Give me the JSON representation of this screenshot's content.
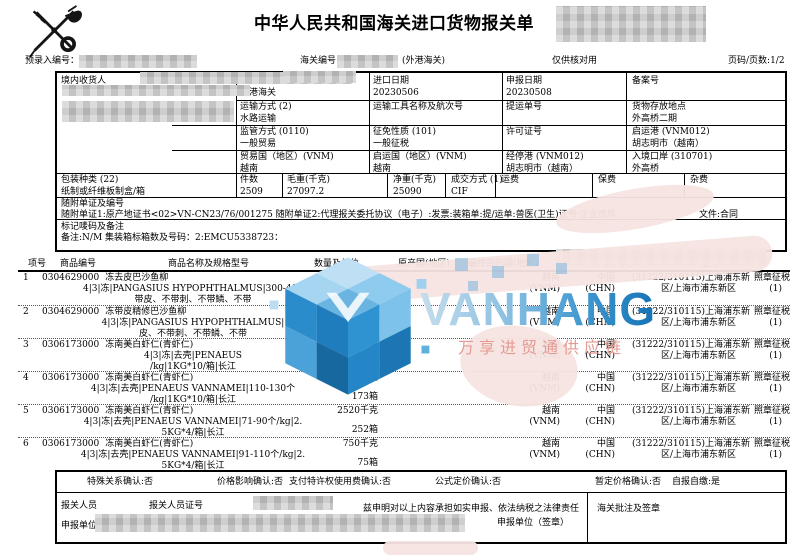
{
  "meta": {
    "title": "中华人民共和国海关进口货物报关单",
    "pre_entry_label": "预录入编号：",
    "customs_no_label": "海关编号：",
    "office": "(外港海关)",
    "check_note": "仅供核对用",
    "page_info": "页码/页数:1/2"
  },
  "head": {
    "consignee_label": "境内收货人",
    "entry_customs_label": "进境关别",
    "entry_customs": "外港海关",
    "import_date_label": "进口日期",
    "import_date": "20230506",
    "declare_date_label": "申报日期",
    "declare_date": "20230508",
    "record_no_label": "备案号",
    "transport_label": "运输方式 (2)",
    "transport": "水路运输",
    "vessel_label": "运输工具名称及航次号",
    "bill_label": "提运单号",
    "storage_label": "货物存放地点",
    "storage": "外高桥二期",
    "supervision_label": "监管方式 (0110)",
    "supervision": "一般贸易",
    "levy_label": "征免性质 (101)",
    "levy": "一般征税",
    "license_label": "许可证号",
    "depart_port_label": "启运港 (VNM012)",
    "depart_port": "胡志明市（越南）",
    "trade_country_label": "贸易国（地区）(VNM)",
    "trade_country": "越南",
    "depart_country_label": "启运国（地区）(VNM)",
    "depart_country": "越南",
    "via_port_label": "经停港 (VNM012)",
    "via_port": "胡志明市（越南）",
    "entry_port_label": "入境口岸 (310701)",
    "entry_port": "外高桥",
    "package_label": "包装种类 (22)",
    "package": "纸制或纤维板制盒/箱",
    "pieces_label": "件数",
    "pieces": "2509",
    "gross_label": "毛重(千克)",
    "gross": "27097.2",
    "net_label": "净重(千克)",
    "net": "25090",
    "terms_label": "成交方式 (1)",
    "terms": "CIF",
    "freight_label": "运费",
    "insurance_label": "保费",
    "misc_label": "杂费",
    "docs_label": "随附单证及编号",
    "docs_text": "随附单证1:原产地证书<02>VN-CN23/76/001275 随附单证2:代理报关委托协议（电子）:发票:装箱单:提/运单:兽医(卫生)证书:企业资质",
    "docs_text_tail": "文件:合同",
    "marks_label": "标记唛码及备注",
    "marks_text": "备注:N/M  集装箱标箱数及号码：2:EMCU5338723："
  },
  "goods": {
    "headers": {
      "no": "项号",
      "code": "商品编号",
      "name": "商品名称及规格型号",
      "qty": "数量及单位",
      "origin": "原产国(地区)",
      "dest": "最终目的国(地区)",
      "place": "境内目的地",
      "duty": "征免"
    },
    "rows": [
      {
        "no": "1",
        "code": "0304629000",
        "name": "冻去皮巴沙鱼柳",
        "spec1": "4|3|冻|PANGASIUS HYPOPHTHALMUS|300-400",
        "spec2": "带皮、不带刺、不带鳞、不带",
        "qty_weight": "",
        "qty_boxes": "",
        "origin": "越南",
        "origin_code": "(VNM)",
        "dest": "中国",
        "dest_code": "(CHN)",
        "place1": "(31222/310115)上海浦东新",
        "place2": "区/上海市浦东新区",
        "duty": "照章征税",
        "duty_code": "(1)"
      },
      {
        "no": "2",
        "code": "0304629000",
        "name": "冻带皮精修巴沙鱼柳",
        "spec1": "4|3|冻|PANGASIUS HYPOPHTHALMUS|",
        "spec2": "皮、不带刺、不带鳞、不带",
        "qty_weight": "",
        "qty_boxes": "905箱",
        "origin": "越南",
        "origin_code": "(VNM)",
        "dest": "中国",
        "dest_code": "(CHN)",
        "place1": "(31222/310115)上海浦东新",
        "place2": "区/上海市浦东新区",
        "duty": "照章征税",
        "duty_code": "(1)"
      },
      {
        "no": "3",
        "code": "0306173000",
        "name": "冻南美白虾仁(青虾仁)",
        "spec1": "4|3|冻|去壳|PENAEUS",
        "spec2": "/kg|1KG*10/箱|长江",
        "qty_weight": "500千克",
        "qty_boxes": "50箱",
        "origin": "越南",
        "origin_code": "(VNM)",
        "dest": "中国",
        "dest_code": "(CHN)",
        "place1": "(31222/310115)上海浦东新",
        "place2": "区/上海市浦东新区",
        "duty": "照章征税",
        "duty_code": "(1)"
      },
      {
        "no": "4",
        "code": "0306173000",
        "name": "冻南美白虾仁(青虾仁)",
        "spec1": "4|3|冻|去壳|PENAEUS VANNAMEI|110-130个",
        "spec2": "/kg|1KG*10/箱|长江",
        "qty_weight": "1730千克",
        "qty_boxes": "173箱",
        "origin": "越南",
        "origin_code": "(VNM)",
        "dest": "中国",
        "dest_code": "(CHN)",
        "place1": "(31222/310115)上海浦东新",
        "place2": "区/上海市浦东新区",
        "duty": "照章征税",
        "duty_code": "(1)"
      },
      {
        "no": "5",
        "code": "0306173000",
        "name": "冻南美白虾仁(青虾仁)",
        "spec1": "4|3|冻|去壳|PENAEUS VANNAMEI|71-90个/kg|2.",
        "spec2": "5KG*4/箱|长江",
        "qty_weight": "2520千克",
        "qty_boxes": "252箱",
        "origin": "越南",
        "origin_code": "(VNM)",
        "dest": "中国",
        "dest_code": "(CHN)",
        "place1": "(31222/310115)上海浦东新",
        "place2": "区/上海市浦东新区",
        "duty": "照章征税",
        "duty_code": "(1)"
      },
      {
        "no": "6",
        "code": "0306173000",
        "name": "冻南美白虾仁(青虾仁)",
        "spec1": "4|3|冻|去壳|PENAEUS VANNAMEI|91-110个/kg|2.",
        "spec2": "5KG*4/箱|长江",
        "qty_weight": "750千克",
        "qty_boxes": "75箱",
        "origin": "越南",
        "origin_code": "(VNM)",
        "dest": "中国",
        "dest_code": "(CHN)",
        "place1": "(31222/310115)上海浦东新",
        "place2": "区/上海市浦东新区",
        "duty": "照章征税",
        "duty_code": "(1)"
      }
    ]
  },
  "footer": {
    "confirms": [
      "特殊关系确认:否",
      "价格影响确认:否",
      "支付特许权使用费确认:否",
      "公式定价确认:否",
      "暂定价格确认:否",
      "自报自缴:是"
    ],
    "declarant_label": "报关人员",
    "declarant_id_label": "报关人员证号",
    "phone_label": "电话",
    "declare_unit_label": "申报单位",
    "declaration": "兹申明对以上内容承担如实申报、依法纳税之法律责任",
    "sign_label": "申报单位（签章）",
    "customs_note_label": "海关批注及签章"
  },
  "watermark": {
    "brand": "VANHANG",
    "slogan": "万享进贸通供应链",
    "brand_color": "#4aa0d6",
    "slogan_color": "#e49a92"
  }
}
